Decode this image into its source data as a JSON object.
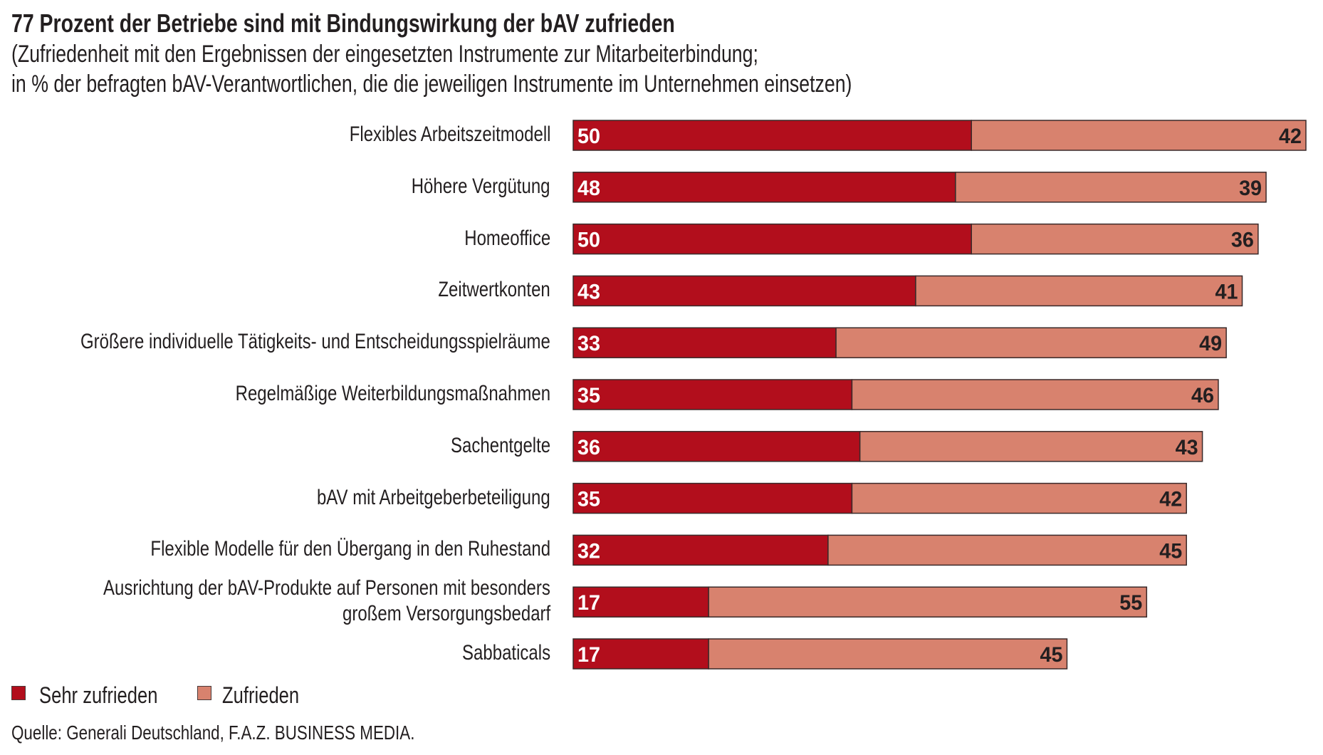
{
  "title": "77 Prozent der Betriebe sind mit Bindungswirkung der bAV zufrieden",
  "subtitle_lines": [
    "(Zufriedenheit mit den Ergebnissen der eingesetzten Instrumente zur Mitarbeiterbindung;",
    "in % der befragten bAV-Verantwortlichen, die die jeweiligen Instrumente im Unternehmen einsetzen)"
  ],
  "source": "Quelle: Generali Deutschland, F.A.Z. BUSINESS MEDIA.",
  "colors": {
    "sehr_zufrieden": "#B20E1C",
    "zufrieden": "#D8826E",
    "bar_border": "#3A2A2A",
    "label_on_dark": "#FFFFFF",
    "label_on_light": "#231F20"
  },
  "chart_data": {
    "type": "bar",
    "orientation": "horizontal",
    "stacked": true,
    "title": "77 Prozent der Betriebe sind mit Bindungswirkung der bAV zufrieden",
    "subtitle": "(Zufriedenheit mit den Ergebnissen der eingesetzten Instrumente zur Mitarbeiterbindung; in % der befragten bAV-Verantwortlichen, die die jeweiligen Instrumente im Unternehmen einsetzen)",
    "xlabel": "",
    "ylabel": "",
    "unit": "%",
    "grid": false,
    "axes_visible": false,
    "xlim": [
      0,
      92
    ],
    "legend_position": "bottom-left",
    "categories": [
      [
        "Flexibles Arbeitszeitmodell"
      ],
      [
        "Höhere Vergütung"
      ],
      [
        "Homeoffice"
      ],
      [
        "Zeitwertkonten"
      ],
      [
        "Größere individuelle Tätigkeits- und Entscheidungsspielräume"
      ],
      [
        "Regelmäßige Weiterbildungsmaßnahmen"
      ],
      [
        "Sachentgelte"
      ],
      [
        "bAV mit Arbeitgeberbeteiligung"
      ],
      [
        "Flexible Modelle für den Übergang in den Ruhestand"
      ],
      [
        "Ausrichtung der bAV-Produkte auf Personen mit besonders",
        "großem Versorgungsbedarf"
      ],
      [
        "Sabbaticals"
      ]
    ],
    "series": [
      {
        "name": "Sehr zufrieden",
        "color": "#B20E1C",
        "values": [
          50,
          48,
          50,
          43,
          33,
          35,
          36,
          35,
          32,
          17,
          17
        ]
      },
      {
        "name": "Zufrieden",
        "color": "#D8826E",
        "values": [
          42,
          39,
          36,
          41,
          49,
          46,
          43,
          42,
          45,
          55,
          45
        ]
      }
    ],
    "legend": [
      "Sehr zufrieden",
      "Zufrieden"
    ]
  }
}
